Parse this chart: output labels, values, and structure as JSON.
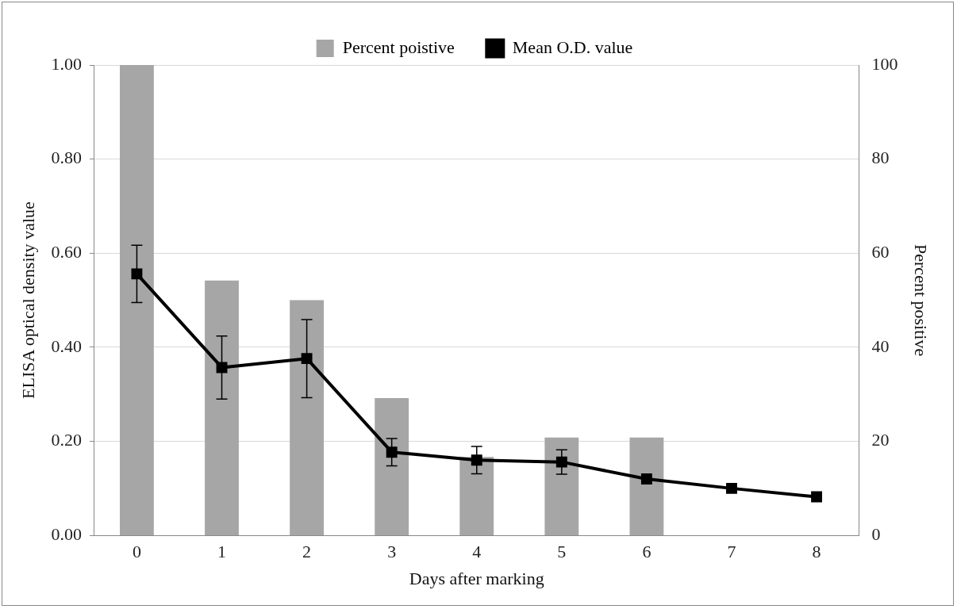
{
  "chart_data": {
    "type": "bar",
    "categories": [
      "0",
      "1",
      "2",
      "3",
      "4",
      "5",
      "6",
      "7",
      "8"
    ],
    "xlabel": "Days after marking",
    "ylabel": "ELISA optical density value",
    "y2label": "Percent positive",
    "series": [
      {
        "name": "Percent poistive",
        "axis": "y2",
        "color": "#a6a6a6",
        "values": [
          100,
          54.2,
          50,
          29.2,
          16.7,
          20.8,
          20.8,
          0,
          0
        ]
      },
      {
        "name": "Mean O.D. value",
        "type": "line",
        "axis": "y",
        "color": "#000000",
        "marker": "square",
        "line_style": "solid",
        "values": [
          0.556,
          0.357,
          0.376,
          0.177,
          0.16,
          0.156,
          0.12,
          0.1,
          0.082
        ],
        "errors": [
          0.061,
          0.067,
          0.083,
          0.029,
          0.029,
          0.026,
          null,
          null,
          null
        ]
      }
    ],
    "ylim": [
      0,
      1
    ],
    "yticks": [
      {
        "value": 0,
        "label": "0.00"
      },
      {
        "value": 0.2,
        "label": "0.20"
      },
      {
        "value": 0.4,
        "label": "0.40"
      },
      {
        "value": 0.6,
        "label": "0.60"
      },
      {
        "value": 0.8,
        "label": "0.80"
      },
      {
        "value": 1,
        "label": "1.00"
      }
    ],
    "y2lim": [
      0,
      100
    ],
    "y2ticks": [
      0,
      20,
      40,
      60,
      80,
      100
    ],
    "grid": "y",
    "legend": "top"
  }
}
